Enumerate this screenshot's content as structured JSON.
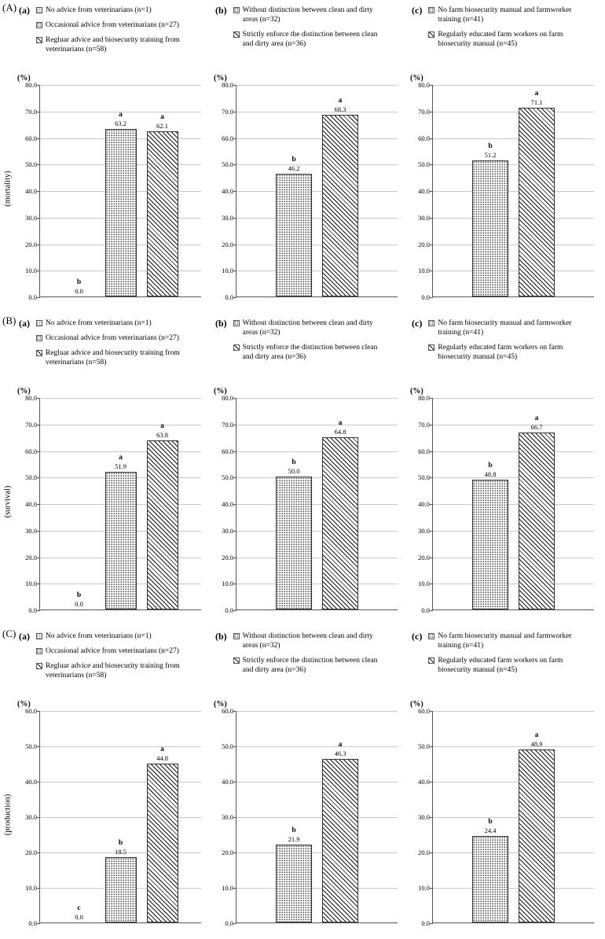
{
  "chart_data": [
    {
      "type": "bar",
      "row_label": "(A)",
      "panel_label": "(a)",
      "ylabel": "(mortality)",
      "unit_label": "(%)",
      "xlabel": "",
      "ylim": [
        0,
        80
      ],
      "ytick_step": 10,
      "grid": true,
      "legend_position": "top",
      "categories": [
        "No advice from veterinarians (n=1)",
        "Occasional advice from veterinarians (n=27)",
        "Regluar advice and biosecurity training from veterinarians (n=58)"
      ],
      "patterns": [
        "grid-light",
        "stipple",
        "diagonal"
      ],
      "values": [
        0.0,
        63.2,
        62.1
      ],
      "sig_letters": [
        "b",
        "a",
        "a"
      ]
    },
    {
      "type": "bar",
      "row_label": "(A)",
      "panel_label": "(b)",
      "ylabel": "(mortality)",
      "unit_label": "(%)",
      "xlabel": "",
      "ylim": [
        0,
        80
      ],
      "ytick_step": 10,
      "grid": true,
      "legend_position": "top",
      "categories": [
        "Without distinction between clean and dirty areas (n=32)",
        "Strictly enforce the distinction between clean and dirty area (n=36)"
      ],
      "patterns": [
        "stipple",
        "diagonal"
      ],
      "values": [
        46.2,
        68.3
      ],
      "sig_letters": [
        "b",
        "a"
      ]
    },
    {
      "type": "bar",
      "row_label": "(A)",
      "panel_label": "(c)",
      "ylabel": "(mortality)",
      "unit_label": "(%)",
      "xlabel": "",
      "ylim": [
        0,
        80
      ],
      "ytick_step": 10,
      "grid": true,
      "legend_position": "top",
      "categories": [
        "No farm biosecurity manual and farmworker training (n=41)",
        "Regularly educated farm workers on farm biosecurity manual (n=45)"
      ],
      "patterns": [
        "stipple",
        "diagonal"
      ],
      "values": [
        51.2,
        71.1
      ],
      "sig_letters": [
        "b",
        "a"
      ]
    },
    {
      "type": "bar",
      "row_label": "(B)",
      "panel_label": "(a)",
      "ylabel": "(survival)",
      "unit_label": "(%)",
      "xlabel": "",
      "ylim": [
        0,
        80
      ],
      "ytick_step": 10,
      "grid": true,
      "legend_position": "top",
      "categories": [
        "No advice from veterinarians (n=1)",
        "Occasional advice from veterinarians (n=27)",
        "Regluar advice and biosecurity training from veterinarians (n=58)"
      ],
      "patterns": [
        "grid-light",
        "stipple",
        "diagonal"
      ],
      "values": [
        0.0,
        51.9,
        63.8
      ],
      "sig_letters": [
        "b",
        "a",
        "a"
      ]
    },
    {
      "type": "bar",
      "row_label": "(B)",
      "panel_label": "(b)",
      "ylabel": "(survival)",
      "unit_label": "(%)",
      "xlabel": "",
      "ylim": [
        0,
        80
      ],
      "ytick_step": 10,
      "grid": true,
      "legend_position": "top",
      "categories": [
        "Without distinction between clean and dirty areas (n=32)",
        "Strictly enforce the distinction between clean and dirty area (n=36)"
      ],
      "patterns": [
        "stipple",
        "diagonal"
      ],
      "values": [
        50.0,
        64.8
      ],
      "sig_letters": [
        "b",
        "a"
      ]
    },
    {
      "type": "bar",
      "row_label": "(B)",
      "panel_label": "(c)",
      "ylabel": "(survival)",
      "unit_label": "(%)",
      "xlabel": "",
      "ylim": [
        0,
        80
      ],
      "ytick_step": 10,
      "grid": true,
      "legend_position": "top",
      "categories": [
        "No farm biosecurity manual and farmworker training (n=41)",
        "Regularly educated farm workers on farm biosecurity manual (n=45)"
      ],
      "patterns": [
        "stipple",
        "diagonal"
      ],
      "values": [
        48.8,
        66.7
      ],
      "sig_letters": [
        "b",
        "a"
      ]
    },
    {
      "type": "bar",
      "row_label": "(C)",
      "panel_label": "(a)",
      "ylabel": "(production)",
      "unit_label": "(%)",
      "xlabel": "",
      "ylim": [
        0,
        60
      ],
      "ytick_step": 10,
      "grid": true,
      "legend_position": "top",
      "categories": [
        "No advice from veterinarians (n=1)",
        "Occasional advice from veterinarians (n=27)",
        "Regluar advice and biosecurity training from veterinarians (n=58)"
      ],
      "patterns": [
        "grid-light",
        "stipple",
        "diagonal"
      ],
      "values": [
        0.0,
        18.5,
        44.8
      ],
      "sig_letters": [
        "c",
        "b",
        "a"
      ]
    },
    {
      "type": "bar",
      "row_label": "(C)",
      "panel_label": "(b)",
      "ylabel": "(production)",
      "unit_label": "(%)",
      "xlabel": "",
      "ylim": [
        0,
        60
      ],
      "ytick_step": 10,
      "grid": true,
      "legend_position": "top",
      "categories": [
        "Without distinction between clean and dirty areas (n=32)",
        "Strictly enforce the distinction between clean and dirty area (n=36)"
      ],
      "patterns": [
        "stipple",
        "diagonal"
      ],
      "values": [
        21.9,
        46.3
      ],
      "sig_letters": [
        "b",
        "a"
      ]
    },
    {
      "type": "bar",
      "row_label": "(C)",
      "panel_label": "(c)",
      "ylabel": "(production)",
      "unit_label": "(%)",
      "xlabel": "",
      "ylim": [
        0,
        60
      ],
      "ytick_step": 10,
      "grid": true,
      "legend_position": "top",
      "categories": [
        "No farm biosecurity manual and farmworker training (n=41)",
        "Regularly educated farm workers on farm biosecurity manual (n=45)"
      ],
      "patterns": [
        "stipple",
        "diagonal"
      ],
      "values": [
        24.4,
        48.9
      ],
      "sig_letters": [
        "b",
        "a"
      ]
    }
  ]
}
